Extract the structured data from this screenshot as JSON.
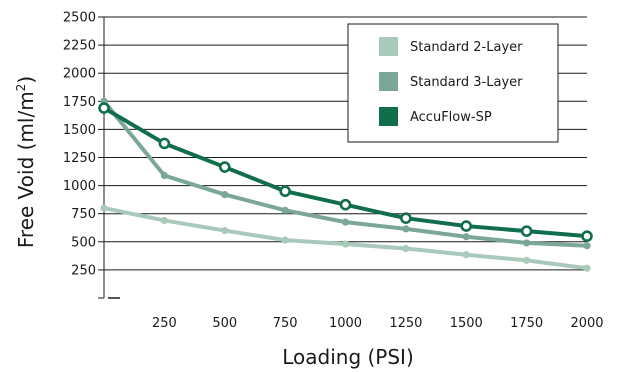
{
  "chart_data": {
    "type": "line",
    "xlabel": "Loading (PSI)",
    "ylabel": "Free Void (ml/m²)",
    "ylabel_parts": {
      "text": "Free Void (ml/m",
      "sup": "2",
      "close": ")"
    },
    "xlim": [
      0,
      2000
    ],
    "ylim": [
      0,
      2500
    ],
    "x_ticks": [
      250,
      500,
      750,
      1000,
      1250,
      1500,
      1750,
      2000
    ],
    "y_ticks": [
      250,
      500,
      750,
      1000,
      1250,
      1500,
      1750,
      2000,
      2250,
      2500
    ],
    "grid": "horizontal",
    "legend_position": "top-right",
    "x": [
      0,
      250,
      500,
      750,
      1000,
      1250,
      1500,
      1750,
      2000
    ],
    "series": [
      {
        "name": "Standard 2-Layer",
        "color": "#a9c9bb",
        "marker": "filled-dot",
        "values": [
          800,
          690,
          600,
          515,
          480,
          440,
          385,
          335,
          265
        ]
      },
      {
        "name": "Standard 3-Layer",
        "color": "#7aa797",
        "marker": "filled-dot",
        "values": [
          1750,
          1090,
          920,
          780,
          675,
          615,
          545,
          490,
          465
        ]
      },
      {
        "name": "AccuFlow-SP",
        "color": "#116e4b",
        "marker": "open-circle",
        "values": [
          1690,
          1375,
          1165,
          950,
          830,
          710,
          640,
          595,
          550
        ]
      }
    ]
  }
}
